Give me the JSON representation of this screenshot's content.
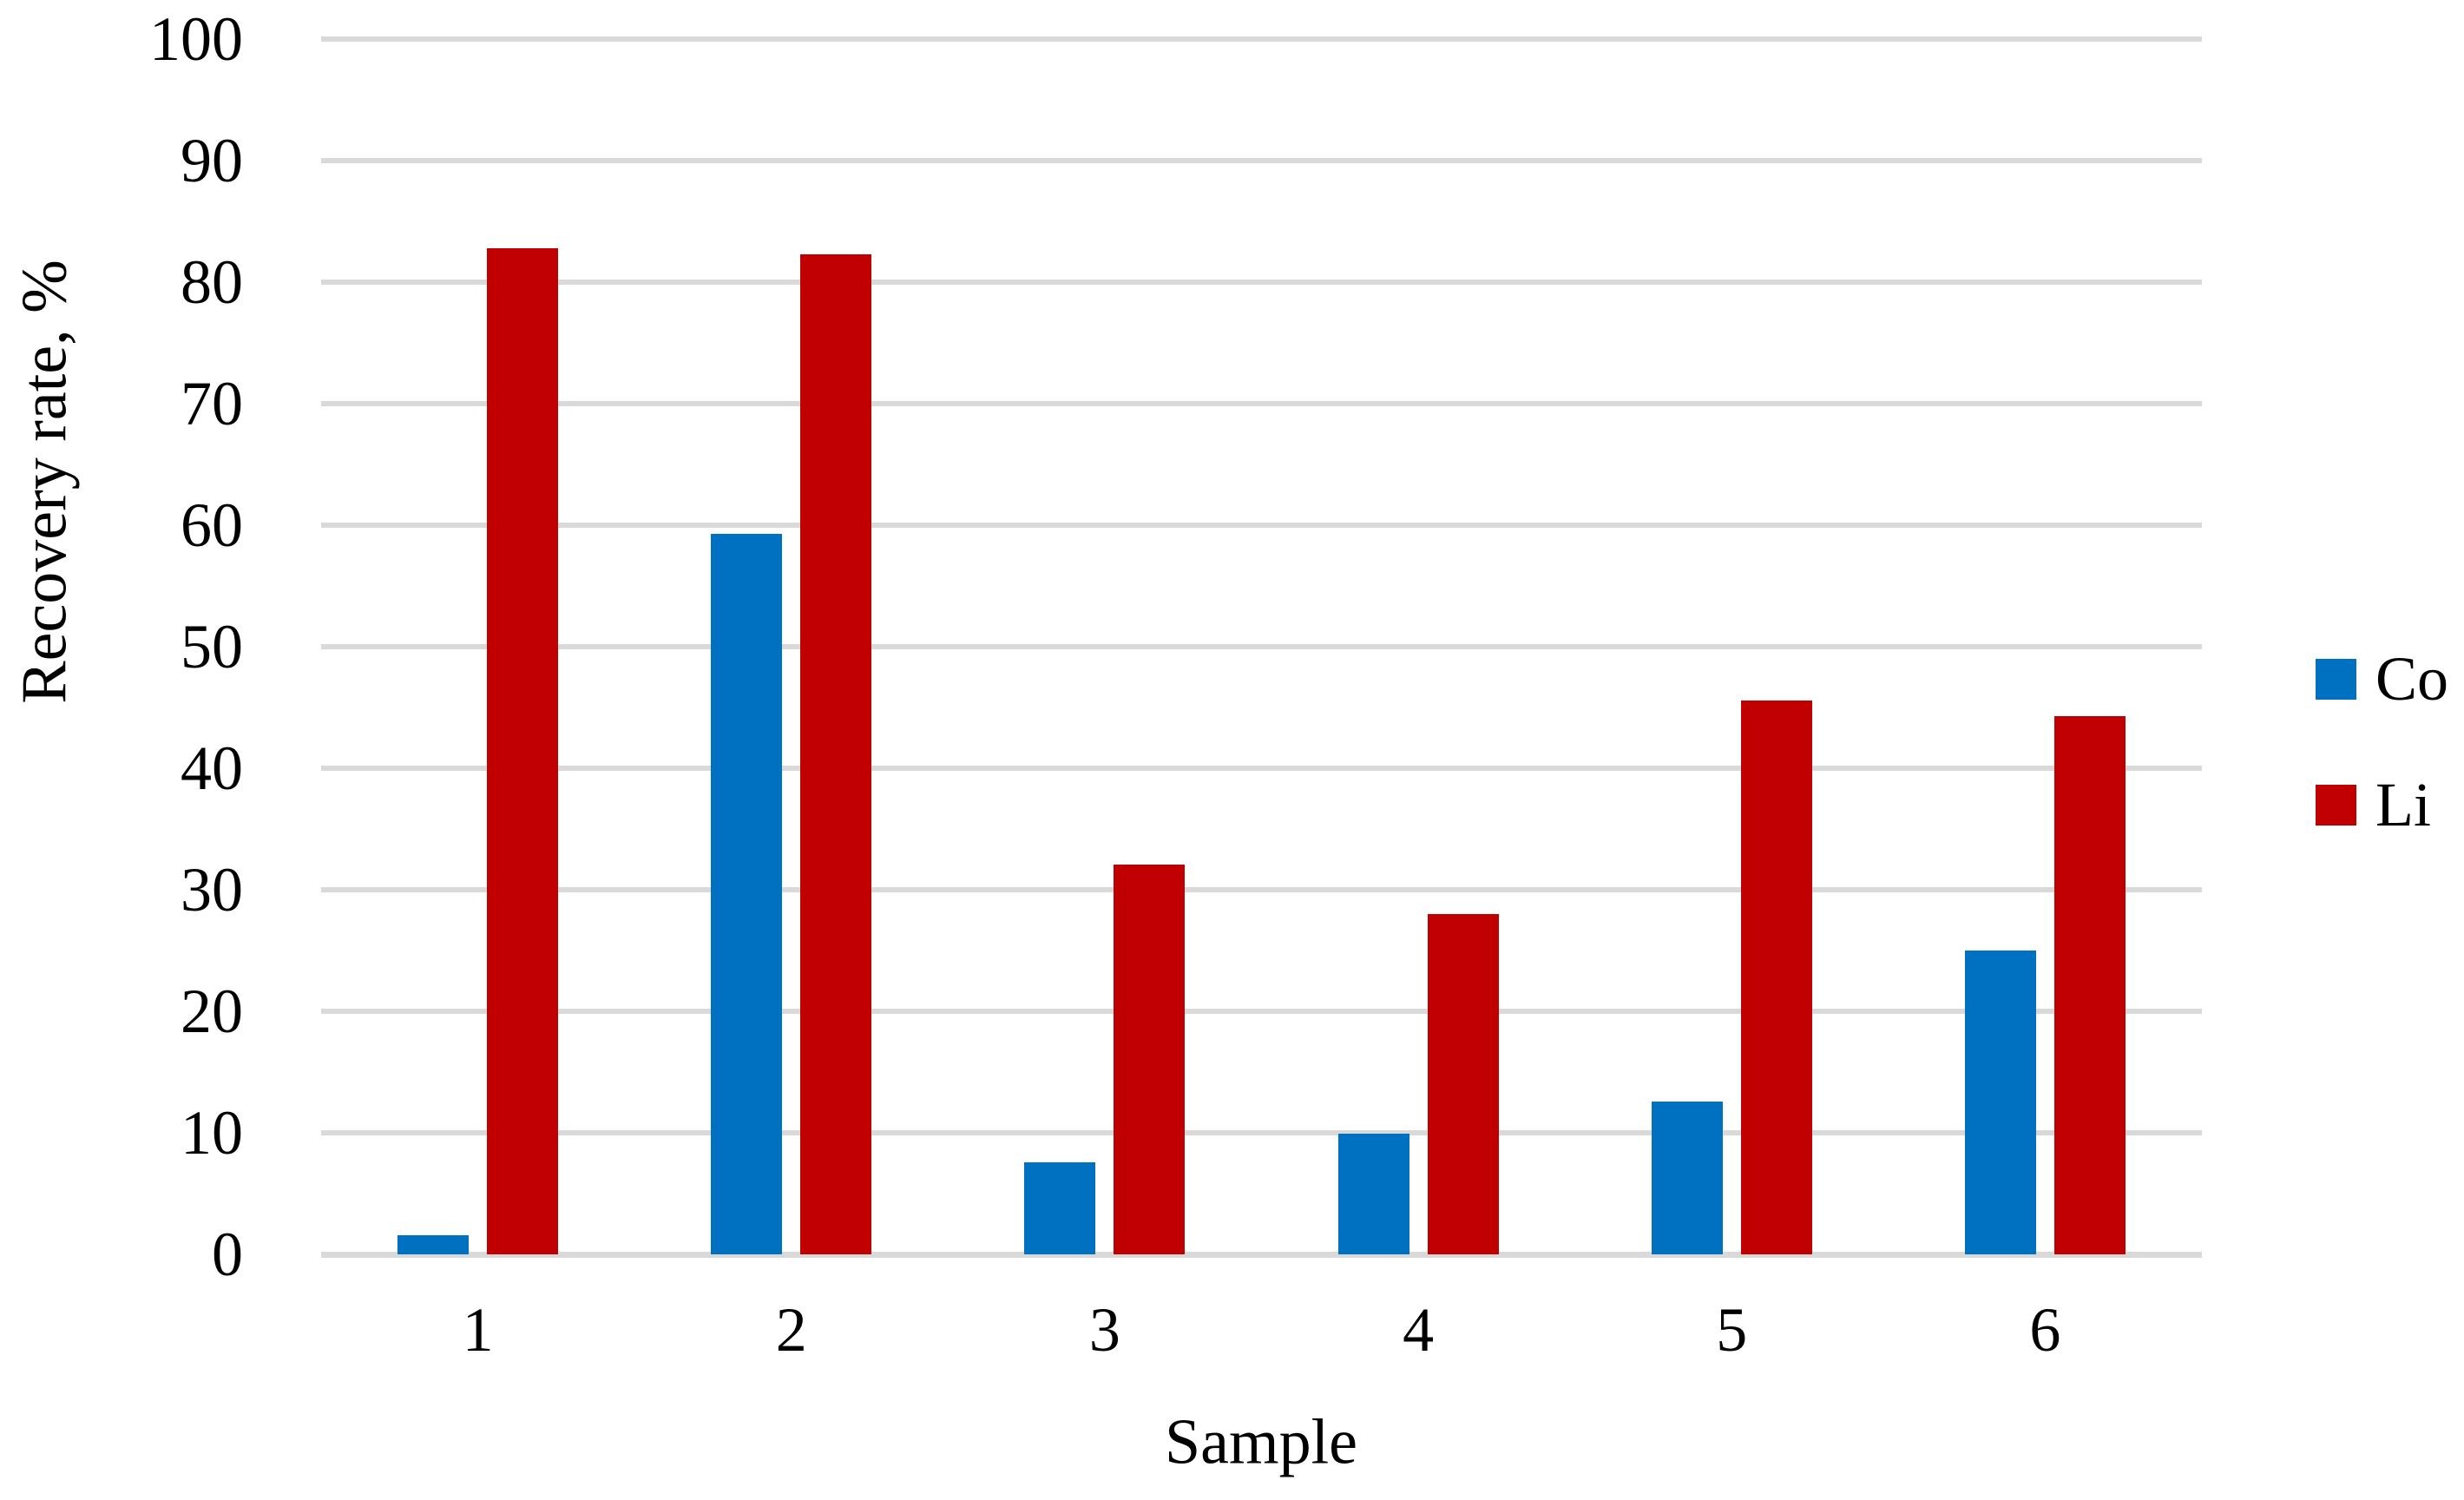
{
  "chart_data": {
    "type": "bar",
    "title": "",
    "xlabel": "Sample",
    "ylabel": "Recovery rate, %",
    "categories": [
      "1",
      "2",
      "3",
      "4",
      "5",
      "6"
    ],
    "series": [
      {
        "name": "Co",
        "color": "#0070C0",
        "values": [
          1.6,
          59.3,
          7.6,
          9.9,
          12.6,
          25.0
        ]
      },
      {
        "name": "Li",
        "color": "#C00000",
        "values": [
          82.8,
          82.3,
          32.1,
          28.0,
          45.6,
          44.3
        ]
      }
    ],
    "ylim": [
      0,
      100
    ],
    "yticks": [
      0,
      10,
      20,
      30,
      40,
      50,
      60,
      70,
      80,
      90,
      100
    ],
    "grid": "horizontal",
    "gridline_color": "#D9D9D9",
    "axis_text_color": "#000000",
    "legend_position": "right",
    "background_color": "#FFFFFF"
  }
}
